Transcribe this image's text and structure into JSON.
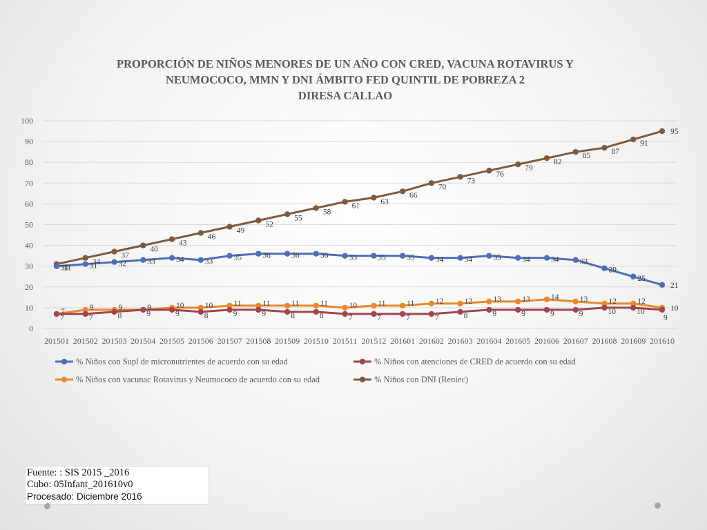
{
  "chart_data": {
    "type": "line",
    "title_lines": [
      "PROPORCIÓN DE NIÑOS MENORES DE UN AÑO CON CRED, VACUNA ROTAVIRUS Y",
      "NEUMOCOCO, MMN Y DNI  ÁMBITO FED QUINTIL  DE POBREZA 2",
      "DIRESA CALLAO"
    ],
    "categories": [
      "201501",
      "201502",
      "201503",
      "201504",
      "201505",
      "201506",
      "201507",
      "201508",
      "201509",
      "201510",
      "201511",
      "201512",
      "201601",
      "201602",
      "201603",
      "201604",
      "201605",
      "201606",
      "201607",
      "201608",
      "201609",
      "201610"
    ],
    "ylim": [
      0,
      100
    ],
    "yticks": [
      0,
      10,
      20,
      30,
      40,
      50,
      60,
      70,
      80,
      90,
      100
    ],
    "grid": true,
    "legend_position": "bottom",
    "series": [
      {
        "name": "% Niños con Supl de micronutrientes de acuerdo con su edad",
        "color": "#4f6eb4",
        "values": [
          30,
          31,
          32,
          33,
          34,
          33,
          35,
          36,
          36,
          36,
          35,
          35,
          35,
          34,
          34,
          35,
          34,
          34,
          33,
          29,
          25,
          21
        ]
      },
      {
        "name": "% Niños  con atenciones de CRED de acuerdo con su edad",
        "color": "#a0464f",
        "values": [
          7,
          7,
          8,
          9,
          9,
          8,
          9,
          9,
          8,
          8,
          7,
          7,
          7,
          7,
          8,
          9,
          9,
          9,
          9,
          10,
          10,
          9
        ]
      },
      {
        "name": "% Niños con vacunac Rotavirus y Neumococo de acuerdo con su edad",
        "color": "#e8892f",
        "values": [
          7,
          9,
          9,
          9,
          10,
          10,
          11,
          11,
          11,
          11,
          10,
          11,
          11,
          12,
          12,
          13,
          13,
          14,
          13,
          12,
          12,
          10
        ]
      },
      {
        "name": "% Niños con DNI (Reniec)",
        "color": "#7e5a3f",
        "values": [
          31,
          34,
          37,
          40,
          43,
          46,
          49,
          52,
          55,
          58,
          61,
          63,
          66,
          70,
          73,
          76,
          79,
          82,
          85,
          87,
          91,
          95
        ]
      }
    ]
  },
  "source": {
    "line1": "Fuente: : SIS 2015 _2016",
    "line2": "Cubo: 05Infant_201610v0",
    "line3": "Procesado: Diciembre 2016"
  }
}
